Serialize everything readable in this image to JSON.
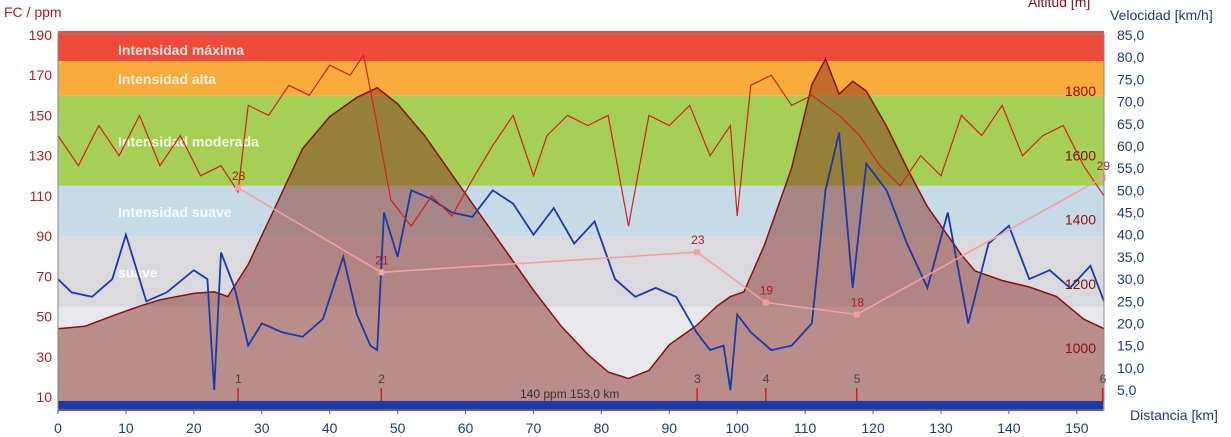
{
  "chart_data": {
    "type": "line",
    "axes": {
      "left": {
        "title": "FC / ppm",
        "ticks": [
          10,
          30,
          50,
          70,
          90,
          110,
          130,
          150,
          170,
          190
        ],
        "range": [
          0,
          195
        ]
      },
      "right_altitude": {
        "title": "Altitud [m]",
        "ticks": [
          1000,
          1200,
          1400,
          1600,
          1800
        ]
      },
      "right_speed": {
        "title": "Velocidad [km/h]",
        "ticks": [
          "5,0",
          "10,0",
          "15,0",
          "20,0",
          "25,0",
          "30,0",
          "35,0",
          "40,0",
          "45,0",
          "50,0",
          "55,0",
          "60,0",
          "65,0",
          "70,0",
          "75,0",
          "80,0",
          "85,0"
        ],
        "range": [
          0,
          87
        ]
      },
      "x": {
        "title": "Distancia [km]",
        "ticks": [
          0,
          10,
          20,
          30,
          40,
          50,
          60,
          70,
          80,
          90,
          100,
          110,
          120,
          130,
          140,
          150
        ],
        "range": [
          0,
          154
        ]
      }
    },
    "zones": [
      {
        "label": "Intensidad máxima",
        "from": 177,
        "to": 192,
        "color": "#f04a3a"
      },
      {
        "label": "Intensidad alta",
        "from": 160,
        "to": 177,
        "color": "#f7ac3c"
      },
      {
        "label": "Intensidad moderada",
        "from": 115,
        "to": 160,
        "color": "#a6cf56"
      },
      {
        "label": "Intensidad suave",
        "from": 90,
        "to": 115,
        "color": "#c6dbe7"
      },
      {
        "label": "suave",
        "from": 55,
        "to": 90,
        "color": "#d9d9de"
      }
    ],
    "laps": [
      {
        "label": "1",
        "x": 26.5
      },
      {
        "label": "2",
        "x": 47.6
      },
      {
        "label": "3",
        "x": 94.1
      },
      {
        "label": "4",
        "x": 104.2
      },
      {
        "label": "5",
        "x": 117.6
      },
      {
        "label": "6",
        "x": 153.8
      }
    ],
    "lap_markers": {
      "series": "Velocidad media",
      "points": [
        {
          "x": 26.5,
          "hr": 114,
          "label": "28"
        },
        {
          "x": 47.6,
          "hr": 72,
          "label": "21"
        },
        {
          "x": 94.1,
          "hr": 82,
          "label": "23"
        },
        {
          "x": 104.2,
          "hr": 57,
          "label": "19"
        },
        {
          "x": 117.6,
          "hr": 51,
          "label": "18"
        },
        {
          "x": 153.8,
          "hr": 119,
          "label": "29"
        }
      ]
    },
    "altitude": {
      "name": "Altitud",
      "x": [
        0,
        4,
        8,
        12,
        15,
        20,
        23,
        25,
        28,
        32,
        36,
        40,
        44,
        47,
        50,
        54,
        58,
        62,
        66,
        70,
        74,
        78,
        81,
        84,
        87,
        90,
        94,
        97,
        99,
        101,
        104,
        108,
        111,
        113,
        115,
        117,
        119,
        122,
        125,
        128,
        131,
        133,
        135,
        139,
        143,
        147,
        151,
        154
      ],
      "values": [
        1060,
        1068,
        1100,
        1130,
        1150,
        1170,
        1175,
        1160,
        1260,
        1440,
        1620,
        1720,
        1780,
        1810,
        1760,
        1660,
        1540,
        1420,
        1300,
        1180,
        1070,
        980,
        925,
        905,
        930,
        1010,
        1070,
        1130,
        1160,
        1175,
        1320,
        1560,
        1820,
        1900,
        1790,
        1830,
        1800,
        1690,
        1560,
        1440,
        1350,
        1290,
        1240,
        1210,
        1190,
        1160,
        1090,
        1060
      ]
    },
    "heart_rate": {
      "name": "FC",
      "x": [
        0,
        3,
        6,
        9,
        12,
        15,
        18,
        21,
        24,
        26.5,
        28,
        31,
        34,
        37,
        40,
        43,
        45,
        47,
        49,
        52,
        55,
        58,
        61,
        64,
        67,
        70,
        72,
        75,
        78,
        81,
        84,
        87,
        90,
        93,
        96,
        99,
        100,
        102,
        105,
        108,
        111,
        113,
        115,
        118,
        121,
        124,
        127,
        130,
        133,
        136,
        139,
        142,
        145,
        148,
        151,
        154
      ],
      "values": [
        140,
        125,
        145,
        130,
        150,
        125,
        140,
        120,
        125,
        112,
        155,
        150,
        165,
        160,
        175,
        170,
        180,
        145,
        108,
        95,
        110,
        100,
        118,
        135,
        150,
        120,
        140,
        150,
        145,
        150,
        95,
        150,
        145,
        155,
        130,
        145,
        100,
        165,
        170,
        155,
        160,
        155,
        150,
        140,
        125,
        115,
        130,
        120,
        150,
        140,
        155,
        130,
        140,
        145,
        125,
        110
      ]
    },
    "speed": {
      "name": "Velocidad",
      "x": [
        0,
        2,
        5,
        8,
        10,
        13,
        16,
        20,
        22,
        23,
        24,
        26,
        28,
        30,
        33,
        36,
        39,
        42,
        44,
        46,
        47,
        48,
        50,
        52,
        55,
        58,
        61,
        64,
        67,
        70,
        73,
        76,
        79,
        82,
        85,
        88,
        91,
        94,
        96,
        98,
        99,
        100,
        102,
        105,
        108,
        111,
        113,
        115,
        117,
        119,
        122,
        125,
        128,
        131,
        134,
        137,
        140,
        143,
        146,
        149,
        152,
        154
      ],
      "values": [
        30,
        27,
        26,
        30,
        40,
        25,
        27,
        32,
        30,
        5,
        36,
        28,
        15,
        20,
        18,
        17,
        21,
        35,
        22,
        15,
        14,
        45,
        35,
        50,
        48,
        45,
        44,
        50,
        47,
        40,
        46,
        38,
        43,
        30,
        26,
        28,
        26,
        18,
        14,
        15,
        5,
        22,
        18,
        14,
        15,
        20,
        50,
        63,
        28,
        56,
        50,
        38,
        28,
        45,
        20,
        38,
        42,
        30,
        32,
        28,
        33,
        25
      ]
    },
    "bottom_text": "140 ppm  153,0 km"
  }
}
